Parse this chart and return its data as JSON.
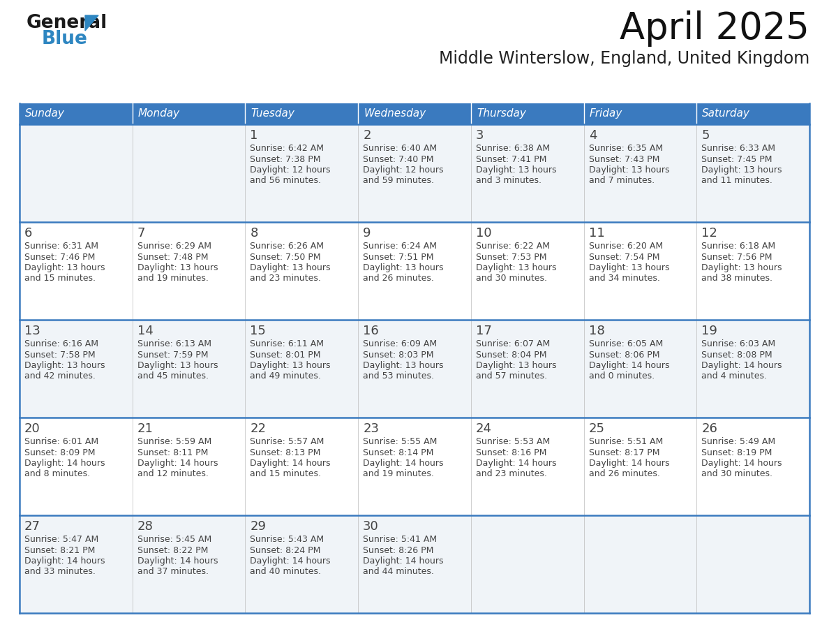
{
  "title": "April 2025",
  "subtitle": "Middle Winterslow, England, United Kingdom",
  "header_bg_color": "#3a7abf",
  "header_text_color": "#ffffff",
  "row_bg_color_odd": "#f0f4f8",
  "row_bg_color_even": "#ffffff",
  "border_color": "#3a7abf",
  "text_color": "#444444",
  "days_of_week": [
    "Sunday",
    "Monday",
    "Tuesday",
    "Wednesday",
    "Thursday",
    "Friday",
    "Saturday"
  ],
  "weeks": [
    [
      {
        "day": "",
        "sunrise": "",
        "sunset": "",
        "daylight_line1": "",
        "daylight_line2": ""
      },
      {
        "day": "",
        "sunrise": "",
        "sunset": "",
        "daylight_line1": "",
        "daylight_line2": ""
      },
      {
        "day": "1",
        "sunrise": "6:42 AM",
        "sunset": "7:38 PM",
        "daylight_line1": "12 hours",
        "daylight_line2": "and 56 minutes."
      },
      {
        "day": "2",
        "sunrise": "6:40 AM",
        "sunset": "7:40 PM",
        "daylight_line1": "12 hours",
        "daylight_line2": "and 59 minutes."
      },
      {
        "day": "3",
        "sunrise": "6:38 AM",
        "sunset": "7:41 PM",
        "daylight_line1": "13 hours",
        "daylight_line2": "and 3 minutes."
      },
      {
        "day": "4",
        "sunrise": "6:35 AM",
        "sunset": "7:43 PM",
        "daylight_line1": "13 hours",
        "daylight_line2": "and 7 minutes."
      },
      {
        "day": "5",
        "sunrise": "6:33 AM",
        "sunset": "7:45 PM",
        "daylight_line1": "13 hours",
        "daylight_line2": "and 11 minutes."
      }
    ],
    [
      {
        "day": "6",
        "sunrise": "6:31 AM",
        "sunset": "7:46 PM",
        "daylight_line1": "13 hours",
        "daylight_line2": "and 15 minutes."
      },
      {
        "day": "7",
        "sunrise": "6:29 AM",
        "sunset": "7:48 PM",
        "daylight_line1": "13 hours",
        "daylight_line2": "and 19 minutes."
      },
      {
        "day": "8",
        "sunrise": "6:26 AM",
        "sunset": "7:50 PM",
        "daylight_line1": "13 hours",
        "daylight_line2": "and 23 minutes."
      },
      {
        "day": "9",
        "sunrise": "6:24 AM",
        "sunset": "7:51 PM",
        "daylight_line1": "13 hours",
        "daylight_line2": "and 26 minutes."
      },
      {
        "day": "10",
        "sunrise": "6:22 AM",
        "sunset": "7:53 PM",
        "daylight_line1": "13 hours",
        "daylight_line2": "and 30 minutes."
      },
      {
        "day": "11",
        "sunrise": "6:20 AM",
        "sunset": "7:54 PM",
        "daylight_line1": "13 hours",
        "daylight_line2": "and 34 minutes."
      },
      {
        "day": "12",
        "sunrise": "6:18 AM",
        "sunset": "7:56 PM",
        "daylight_line1": "13 hours",
        "daylight_line2": "and 38 minutes."
      }
    ],
    [
      {
        "day": "13",
        "sunrise": "6:16 AM",
        "sunset": "7:58 PM",
        "daylight_line1": "13 hours",
        "daylight_line2": "and 42 minutes."
      },
      {
        "day": "14",
        "sunrise": "6:13 AM",
        "sunset": "7:59 PM",
        "daylight_line1": "13 hours",
        "daylight_line2": "and 45 minutes."
      },
      {
        "day": "15",
        "sunrise": "6:11 AM",
        "sunset": "8:01 PM",
        "daylight_line1": "13 hours",
        "daylight_line2": "and 49 minutes."
      },
      {
        "day": "16",
        "sunrise": "6:09 AM",
        "sunset": "8:03 PM",
        "daylight_line1": "13 hours",
        "daylight_line2": "and 53 minutes."
      },
      {
        "day": "17",
        "sunrise": "6:07 AM",
        "sunset": "8:04 PM",
        "daylight_line1": "13 hours",
        "daylight_line2": "and 57 minutes."
      },
      {
        "day": "18",
        "sunrise": "6:05 AM",
        "sunset": "8:06 PM",
        "daylight_line1": "14 hours",
        "daylight_line2": "and 0 minutes."
      },
      {
        "day": "19",
        "sunrise": "6:03 AM",
        "sunset": "8:08 PM",
        "daylight_line1": "14 hours",
        "daylight_line2": "and 4 minutes."
      }
    ],
    [
      {
        "day": "20",
        "sunrise": "6:01 AM",
        "sunset": "8:09 PM",
        "daylight_line1": "14 hours",
        "daylight_line2": "and 8 minutes."
      },
      {
        "day": "21",
        "sunrise": "5:59 AM",
        "sunset": "8:11 PM",
        "daylight_line1": "14 hours",
        "daylight_line2": "and 12 minutes."
      },
      {
        "day": "22",
        "sunrise": "5:57 AM",
        "sunset": "8:13 PM",
        "daylight_line1": "14 hours",
        "daylight_line2": "and 15 minutes."
      },
      {
        "day": "23",
        "sunrise": "5:55 AM",
        "sunset": "8:14 PM",
        "daylight_line1": "14 hours",
        "daylight_line2": "and 19 minutes."
      },
      {
        "day": "24",
        "sunrise": "5:53 AM",
        "sunset": "8:16 PM",
        "daylight_line1": "14 hours",
        "daylight_line2": "and 23 minutes."
      },
      {
        "day": "25",
        "sunrise": "5:51 AM",
        "sunset": "8:17 PM",
        "daylight_line1": "14 hours",
        "daylight_line2": "and 26 minutes."
      },
      {
        "day": "26",
        "sunrise": "5:49 AM",
        "sunset": "8:19 PM",
        "daylight_line1": "14 hours",
        "daylight_line2": "and 30 minutes."
      }
    ],
    [
      {
        "day": "27",
        "sunrise": "5:47 AM",
        "sunset": "8:21 PM",
        "daylight_line1": "14 hours",
        "daylight_line2": "and 33 minutes."
      },
      {
        "day": "28",
        "sunrise": "5:45 AM",
        "sunset": "8:22 PM",
        "daylight_line1": "14 hours",
        "daylight_line2": "and 37 minutes."
      },
      {
        "day": "29",
        "sunrise": "5:43 AM",
        "sunset": "8:24 PM",
        "daylight_line1": "14 hours",
        "daylight_line2": "and 40 minutes."
      },
      {
        "day": "30",
        "sunrise": "5:41 AM",
        "sunset": "8:26 PM",
        "daylight_line1": "14 hours",
        "daylight_line2": "and 44 minutes."
      },
      {
        "day": "",
        "sunrise": "",
        "sunset": "",
        "daylight_line1": "",
        "daylight_line2": ""
      },
      {
        "day": "",
        "sunrise": "",
        "sunset": "",
        "daylight_line1": "",
        "daylight_line2": ""
      },
      {
        "day": "",
        "sunrise": "",
        "sunset": "",
        "daylight_line1": "",
        "daylight_line2": ""
      }
    ]
  ],
  "logo_color_general": "#1a1a1a",
  "logo_color_blue": "#2e86c1",
  "logo_triangle_color": "#2e86c1",
  "title_fontsize": 38,
  "subtitle_fontsize": 17,
  "header_fontsize": 11,
  "day_num_fontsize": 13,
  "cell_text_fontsize": 9
}
